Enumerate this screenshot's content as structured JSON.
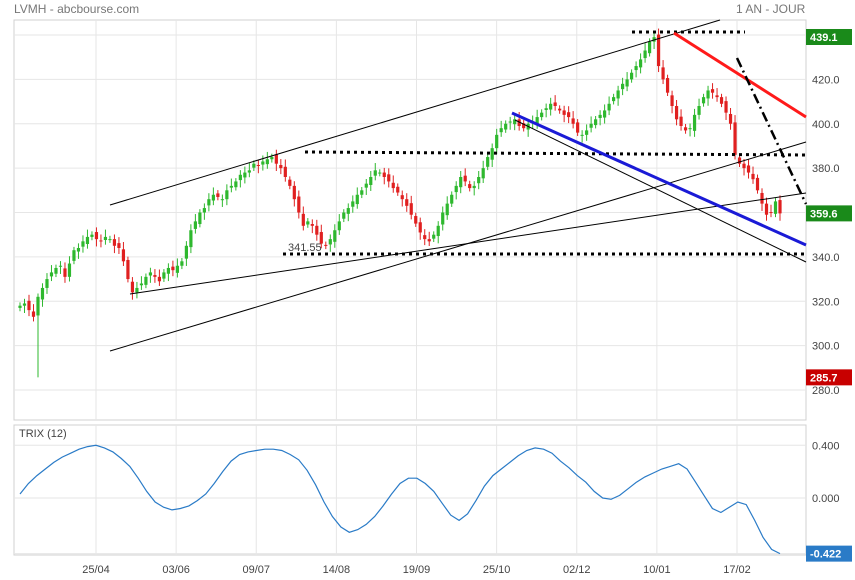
{
  "header": {
    "symbol_source": "LVMH - abcbourse.com",
    "period": "1 AN - JOUR"
  },
  "colors": {
    "up": "#2eb82e",
    "down": "#e02020",
    "trix": "#2a7bc7",
    "grid": "#e6e6e6",
    "red_trend": "#ff1a1a",
    "blue_trend": "#1a1ad6",
    "tag_green": "#1a8a1a",
    "tag_red": "#c80000"
  },
  "chart_data": [
    {
      "type": "candlestick",
      "ylim": [
        280,
        440
      ],
      "yticks": [
        "280.0",
        "300.0",
        "320.0",
        "340.0",
        "360.0",
        "380.0",
        "400.0",
        "420.0",
        "440.0"
      ],
      "xticks": [
        "25/04",
        "03/06",
        "09/07",
        "14/08",
        "19/09",
        "25/10",
        "02/12",
        "10/01",
        "17/02"
      ],
      "price_tags": {
        "high": "439.1",
        "last": "359.6",
        "low": "285.7"
      },
      "annotation": "341.55",
      "closes": [
        318,
        319,
        316,
        313,
        322,
        326,
        330,
        333,
        335,
        336,
        331,
        337,
        343,
        344,
        347,
        349,
        350,
        348,
        347,
        349,
        348,
        345,
        344,
        338,
        330,
        324,
        326,
        328,
        331,
        333,
        331,
        329,
        333,
        335,
        334,
        336,
        338,
        345,
        352,
        356,
        360,
        362,
        366,
        368,
        367,
        366,
        370,
        372,
        374,
        377,
        378,
        379,
        382,
        381,
        383,
        384,
        385,
        382,
        380,
        376,
        372,
        366,
        360,
        354,
        356,
        354,
        350,
        346,
        345,
        348,
        352,
        356,
        360,
        362,
        365,
        368,
        370,
        373,
        376,
        379,
        378,
        376,
        374,
        371,
        369,
        366,
        363,
        359,
        355,
        351,
        348,
        347,
        350,
        354,
        360,
        364,
        368,
        372,
        376,
        374,
        371,
        372,
        376,
        380,
        385,
        389,
        395,
        398,
        400,
        401,
        402,
        399,
        398,
        400,
        401,
        403,
        405,
        407,
        409,
        408,
        406,
        404,
        403,
        400,
        396,
        395,
        397,
        400,
        402,
        404,
        406,
        409,
        412,
        415,
        418,
        420,
        423,
        426,
        429,
        433,
        437,
        439,
        426,
        420,
        414,
        408,
        402,
        399,
        397,
        398,
        404,
        408,
        412,
        415,
        414,
        412,
        409,
        405,
        400,
        386,
        382,
        380,
        378,
        375,
        370,
        364,
        359,
        360,
        365,
        359.6
      ],
      "trix": {
        "label": "TRIX (12)",
        "ylim": [
          -0.44,
          0.44
        ],
        "yticks": [
          "0.400",
          "0.000",
          "-0.422"
        ],
        "values": [
          0.03,
          0.11,
          0.17,
          0.22,
          0.27,
          0.31,
          0.34,
          0.37,
          0.39,
          0.4,
          0.38,
          0.35,
          0.3,
          0.24,
          0.15,
          0.05,
          -0.03,
          -0.07,
          -0.09,
          -0.08,
          -0.06,
          -0.02,
          0.03,
          0.11,
          0.2,
          0.28,
          0.33,
          0.35,
          0.36,
          0.37,
          0.37,
          0.36,
          0.33,
          0.29,
          0.21,
          0.1,
          -0.03,
          -0.14,
          -0.22,
          -0.26,
          -0.24,
          -0.2,
          -0.14,
          -0.06,
          0.03,
          0.11,
          0.15,
          0.15,
          0.11,
          0.05,
          -0.04,
          -0.13,
          -0.17,
          -0.12,
          -0.02,
          0.09,
          0.17,
          0.22,
          0.27,
          0.32,
          0.36,
          0.38,
          0.37,
          0.34,
          0.28,
          0.23,
          0.17,
          0.12,
          0.05,
          0.0,
          -0.01,
          0.02,
          0.07,
          0.12,
          0.16,
          0.19,
          0.22,
          0.24,
          0.26,
          0.22,
          0.12,
          0.02,
          -0.08,
          -0.11,
          -0.07,
          -0.03,
          -0.05,
          -0.17,
          -0.3,
          -0.39,
          -0.422
        ]
      }
    }
  ]
}
